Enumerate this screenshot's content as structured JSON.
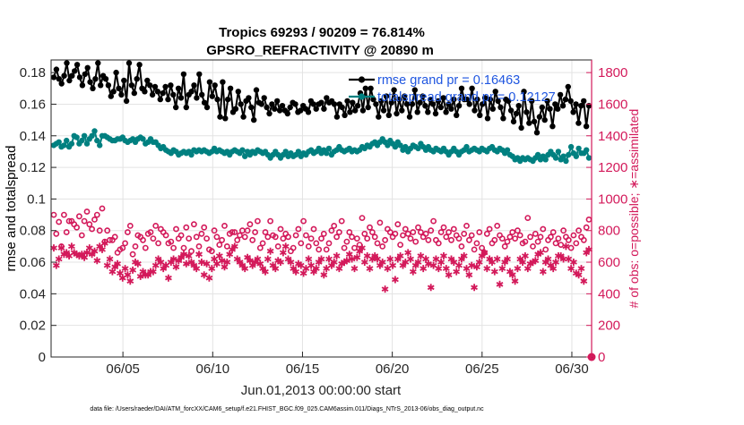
{
  "chart_data": {
    "type": "line",
    "title": "Tropics 69293 / 90209 = 76.814%",
    "subtitle": "GPSRO_REFRACTIVITY @ 20890 m",
    "xlabel": "Jun.01,2013 00:00:00 start",
    "ylabel": "rmse and totalspread",
    "ylabel_right": "# of obs: o=possible; ∗=assimilated",
    "footnote": "data file: /Users/raeder/DAI/ATM_forcXX/CAM6_setup/f.e21.FHIST_BGC.f09_025.CAM6assim.011/Diags_NTrS_2013-06/obs_diag_output.nc",
    "x_range": [
      1.0,
      31.1
    ],
    "x_ticks": [
      5,
      10,
      15,
      20,
      25,
      30
    ],
    "x_tick_labels": [
      "06/05",
      "06/10",
      "06/15",
      "06/20",
      "06/25",
      "06/30"
    ],
    "ylim": [
      0,
      0.188
    ],
    "y_ticks": [
      0,
      0.02,
      0.04,
      0.06,
      0.08,
      0.1,
      0.12,
      0.14,
      0.16,
      0.18
    ],
    "y_tick_labels": [
      "0",
      "0.02",
      "0.04",
      "0.06",
      "0.08",
      "0.1",
      "0.12",
      "0.14",
      "0.16",
      "0.18"
    ],
    "ylim_right": [
      0,
      1880
    ],
    "y_ticks_right": [
      0,
      200,
      400,
      600,
      800,
      1000,
      1200,
      1400,
      1600,
      1800
    ],
    "y_tick_labels_right": [
      "0",
      "200",
      "400",
      "600",
      "800",
      "1000",
      "1200",
      "1400",
      "1600",
      "1800"
    ],
    "grid": true,
    "legend": [
      "rmse grand pr = 0.16463",
      "totalspread grand pr = 0.12127"
    ],
    "series": [
      {
        "name": "rmse grand pr = 0.16463",
        "axis": "left",
        "color": "#000000",
        "values": [
          0.177,
          0.182,
          0.176,
          0.173,
          0.178,
          0.186,
          0.175,
          0.178,
          0.181,
          0.185,
          0.177,
          0.172,
          0.179,
          0.183,
          0.174,
          0.17,
          0.176,
          0.186,
          0.172,
          0.178,
          0.176,
          0.172,
          0.165,
          0.168,
          0.18,
          0.17,
          0.166,
          0.175,
          0.162,
          0.186,
          0.172,
          0.167,
          0.176,
          0.185,
          0.17,
          0.168,
          0.175,
          0.172,
          0.166,
          0.171,
          0.168,
          0.163,
          0.167,
          0.171,
          0.163,
          0.172,
          0.166,
          0.158,
          0.17,
          0.164,
          0.179,
          0.158,
          0.166,
          0.168,
          0.172,
          0.164,
          0.179,
          0.166,
          0.161,
          0.158,
          0.174,
          0.165,
          0.172,
          0.163,
          0.152,
          0.174,
          0.151,
          0.163,
          0.17,
          0.155,
          0.157,
          0.168,
          0.16,
          0.152,
          0.162,
          0.164,
          0.158,
          0.15,
          0.169,
          0.161,
          0.16,
          0.164,
          0.158,
          0.154,
          0.16,
          0.157,
          0.162,
          0.156,
          0.159,
          0.156,
          0.154,
          0.158,
          0.161,
          0.16,
          0.155,
          0.156,
          0.159,
          0.157,
          0.155,
          0.162,
          0.16,
          0.157,
          0.16,
          0.161,
          0.157,
          0.164,
          0.161,
          0.162,
          0.16,
          0.152,
          0.16,
          0.158,
          0.153,
          0.162,
          0.155,
          0.161,
          0.156,
          0.159,
          0.167,
          0.156,
          0.17,
          0.158,
          0.17,
          0.163,
          0.16,
          0.152,
          0.162,
          0.156,
          0.165,
          0.153,
          0.161,
          0.169,
          0.154,
          0.163,
          0.156,
          0.165,
          0.16,
          0.152,
          0.16,
          0.169,
          0.155,
          0.161,
          0.165,
          0.159,
          0.155,
          0.163,
          0.16,
          0.154,
          0.162,
          0.158,
          0.164,
          0.155,
          0.16,
          0.157,
          0.163,
          0.153,
          0.159,
          0.17,
          0.163,
          0.163,
          0.16,
          0.17,
          0.156,
          0.163,
          0.153,
          0.16,
          0.164,
          0.151,
          0.163,
          0.157,
          0.168,
          0.162,
          0.158,
          0.151,
          0.163,
          0.162,
          0.156,
          0.149,
          0.154,
          0.159,
          0.145,
          0.168,
          0.155,
          0.148,
          0.162,
          0.149,
          0.142,
          0.152,
          0.158,
          0.15,
          0.162,
          0.157,
          0.146,
          0.16,
          0.157,
          0.166,
          0.159,
          0.163,
          0.171,
          0.162,
          0.155,
          0.16,
          0.148,
          0.159,
          0.162,
          0.146,
          0.159
        ]
      },
      {
        "name": "totalspread grand pr = 0.12127",
        "axis": "left",
        "color": "#008080",
        "values": [
          0.134,
          0.135,
          0.136,
          0.133,
          0.134,
          0.137,
          0.133,
          0.135,
          0.14,
          0.139,
          0.135,
          0.137,
          0.14,
          0.135,
          0.138,
          0.14,
          0.143,
          0.137,
          0.134,
          0.14,
          0.14,
          0.139,
          0.138,
          0.137,
          0.137,
          0.138,
          0.138,
          0.139,
          0.137,
          0.136,
          0.137,
          0.138,
          0.136,
          0.138,
          0.139,
          0.138,
          0.135,
          0.136,
          0.138,
          0.136,
          0.136,
          0.134,
          0.132,
          0.133,
          0.131,
          0.13,
          0.129,
          0.131,
          0.13,
          0.128,
          0.129,
          0.13,
          0.129,
          0.13,
          0.128,
          0.131,
          0.13,
          0.131,
          0.13,
          0.131,
          0.13,
          0.129,
          0.13,
          0.132,
          0.13,
          0.131,
          0.13,
          0.129,
          0.13,
          0.128,
          0.13,
          0.131,
          0.13,
          0.129,
          0.131,
          0.127,
          0.13,
          0.128,
          0.13,
          0.129,
          0.131,
          0.13,
          0.129,
          0.13,
          0.128,
          0.126,
          0.128,
          0.13,
          0.128,
          0.126,
          0.128,
          0.13,
          0.127,
          0.129,
          0.127,
          0.128,
          0.13,
          0.127,
          0.129,
          0.128,
          0.13,
          0.131,
          0.129,
          0.13,
          0.132,
          0.129,
          0.131,
          0.129,
          0.132,
          0.128,
          0.13,
          0.131,
          0.133,
          0.131,
          0.13,
          0.131,
          0.132,
          0.13,
          0.131,
          0.13,
          0.131,
          0.133,
          0.132,
          0.134,
          0.133,
          0.135,
          0.136,
          0.134,
          0.136,
          0.138,
          0.136,
          0.134,
          0.137,
          0.135,
          0.133,
          0.136,
          0.134,
          0.131,
          0.133,
          0.13,
          0.132,
          0.134,
          0.133,
          0.132,
          0.135,
          0.133,
          0.131,
          0.133,
          0.131,
          0.13,
          0.132,
          0.131,
          0.13,
          0.132,
          0.13,
          0.128,
          0.13,
          0.132,
          0.13,
          0.128,
          0.13,
          0.131,
          0.133,
          0.13,
          0.131,
          0.132,
          0.131,
          0.13,
          0.132,
          0.131,
          0.13,
          0.132,
          0.133,
          0.131,
          0.13,
          0.132,
          0.131,
          0.129,
          0.131,
          0.128,
          0.127,
          0.125,
          0.126,
          0.124,
          0.126,
          0.125,
          0.126,
          0.125,
          0.124,
          0.126,
          0.128,
          0.125,
          0.127,
          0.125,
          0.128,
          0.13,
          0.128,
          0.126,
          0.13,
          0.125,
          0.127,
          0.124,
          0.128,
          0.133,
          0.129,
          0.127,
          0.132,
          0.129,
          0.129,
          0.131,
          0.126
        ]
      },
      {
        "name": "# of obs possible",
        "axis": "right",
        "marker": "o",
        "color": "#d3195a",
        "values": [
          900,
          780,
          855,
          700,
          900,
          790,
          860,
          860,
          840,
          820,
          890,
          770,
          860,
          920,
          840,
          810,
          870,
          900,
          800,
          940,
          730,
          800,
          740,
          740,
          760,
          660,
          680,
          690,
          720,
          790,
          830,
          650,
          700,
          770,
          760,
          740,
          690,
          780,
          790,
          750,
          830,
          720,
          810,
          790,
          770,
          720,
          730,
          690,
          810,
          750,
          770,
          690,
          820,
          750,
          670,
          840,
          760,
          700,
          780,
          820,
          750,
          680,
          670,
          800,
          760,
          710,
          740,
          830,
          700,
          780,
          790,
          790,
          740,
          770,
          800,
          760,
          800,
          840,
          740,
          790,
          860,
          690,
          720,
          790,
          760,
          860,
          770,
          760,
          700,
          810,
          750,
          780,
          760,
          670,
          690,
          770,
          810,
          720,
          860,
          770,
          700,
          750,
          810,
          720,
          680,
          750,
          780,
          680,
          720,
          800,
          830,
          760,
          790,
          860,
          690,
          730,
          790,
          760,
          690,
          750,
          710,
          880,
          780,
          750,
          820,
          790,
          760,
          720,
          850,
          700,
          740,
          810,
          790,
          760,
          780,
          840,
          710,
          770,
          810,
          780,
          750,
          790,
          730,
          820,
          790,
          760,
          780,
          740,
          800,
          860,
          740,
          720,
          790,
          820,
          760,
          790,
          740,
          810,
          770,
          750,
          700,
          780,
          830,
          740,
          770,
          680,
          720,
          790,
          690,
          660,
          780,
          810,
          720,
          740,
          830,
          770,
          750,
          700,
          730,
          760,
          790,
          750,
          800,
          770,
          720,
          730,
          880,
          760,
          700,
          780,
          730,
          760,
          810,
          680,
          740,
          760,
          790,
          720,
          750,
          710,
          800,
          760,
          740,
          690,
          770,
          720,
          800,
          760,
          740,
          820,
          870
        ]
      },
      {
        "name": "# of obs assimilated",
        "axis": "right",
        "marker": "*",
        "color": "#d3195a",
        "values": [
          690,
          580,
          620,
          690,
          650,
          660,
          640,
          700,
          660,
          650,
          640,
          650,
          630,
          660,
          690,
          650,
          670,
          610,
          700,
          680,
          720,
          580,
          620,
          540,
          570,
          590,
          530,
          500,
          560,
          520,
          480,
          550,
          600,
          590,
          510,
          540,
          520,
          520,
          540,
          540,
          580,
          620,
          600,
          560,
          580,
          500,
          600,
          620,
          570,
          610,
          630,
          650,
          590,
          640,
          600,
          580,
          560,
          650,
          600,
          520,
          590,
          500,
          560,
          620,
          590,
          640,
          610,
          570,
          600,
          650,
          680,
          700,
          620,
          600,
          580,
          560,
          630,
          610,
          580,
          600,
          620,
          590,
          560,
          540,
          620,
          670,
          580,
          560,
          610,
          600,
          660,
          700,
          620,
          600,
          560,
          540,
          590,
          580,
          530,
          560,
          620,
          580,
          540,
          560,
          600,
          620,
          520,
          560,
          620,
          580,
          600,
          640,
          560,
          590,
          600,
          610,
          650,
          620,
          560,
          630,
          670,
          690,
          600,
          640,
          560,
          620,
          640,
          620,
          580,
          600,
          430,
          560,
          620,
          580,
          490,
          620,
          640,
          580,
          600,
          660,
          620,
          540,
          580,
          600,
          640,
          560,
          620,
          590,
          440,
          580,
          620,
          560,
          600,
          640,
          560,
          520,
          620,
          600,
          540,
          580,
          620,
          640,
          560,
          520,
          580,
          440,
          570,
          600,
          640,
          660,
          560,
          620,
          600,
          540,
          620,
          460,
          560,
          600,
          620,
          540,
          520,
          480,
          560,
          620,
          600,
          640,
          560,
          590,
          600,
          610,
          650,
          660,
          540,
          600,
          620,
          580,
          560,
          600,
          640,
          640,
          620,
          700,
          620,
          560,
          600,
          530,
          520,
          560,
          480,
          660,
          680
        ]
      }
    ]
  }
}
